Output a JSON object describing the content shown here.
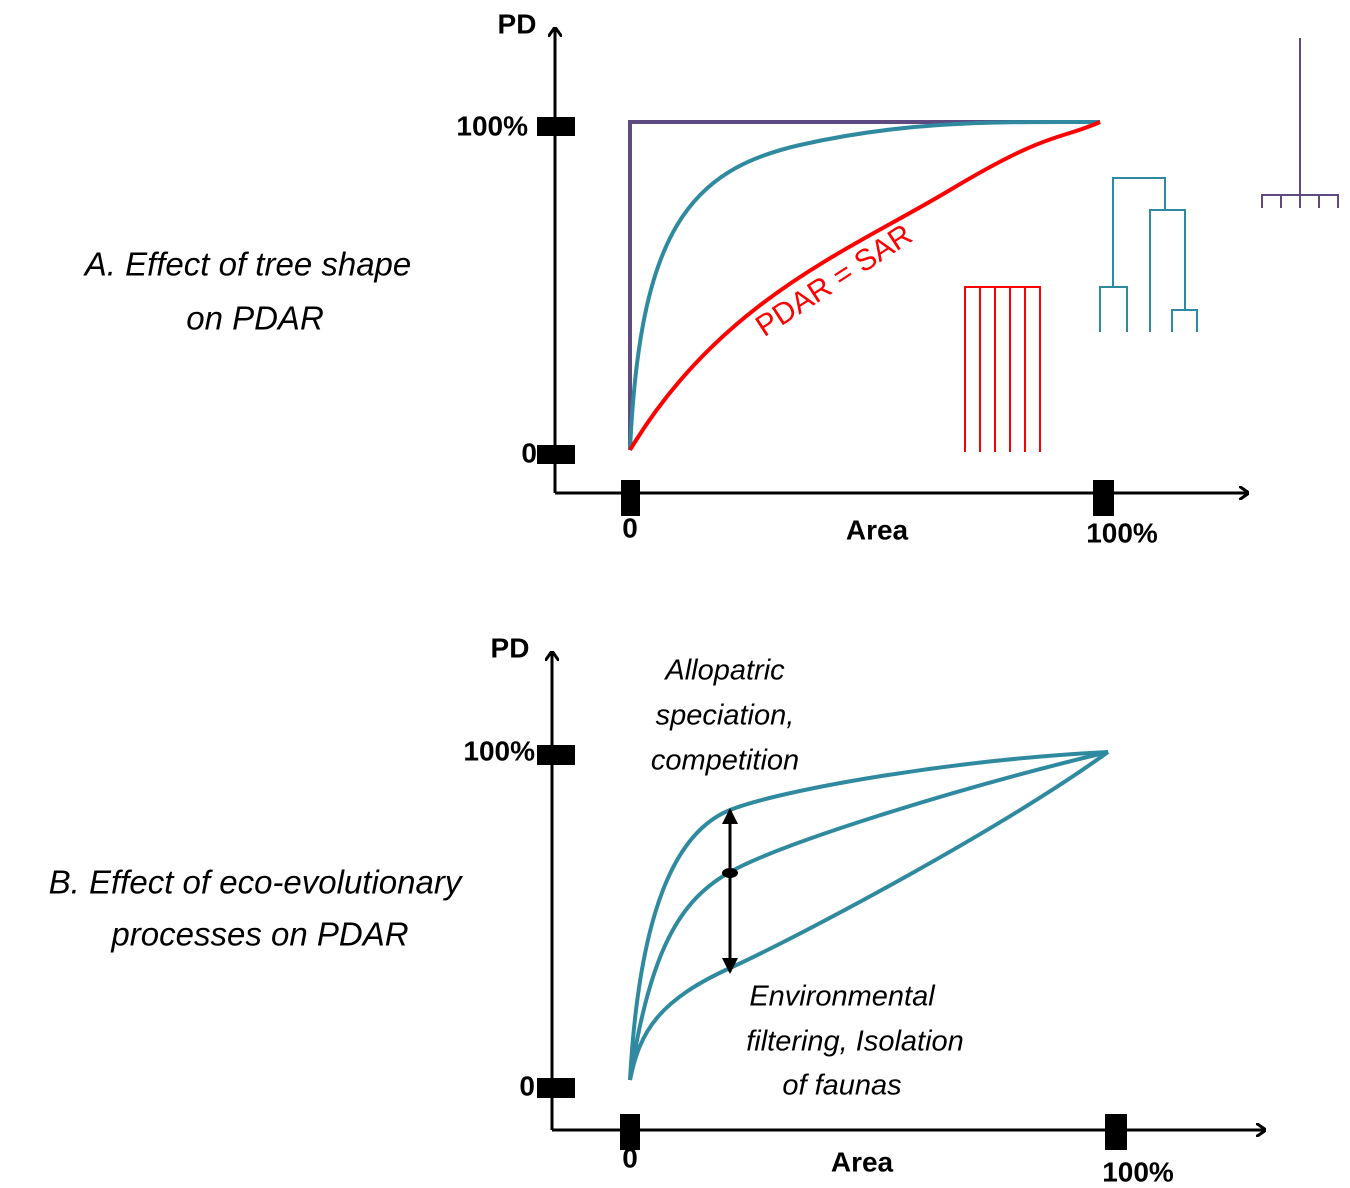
{
  "panel_a": {
    "title_lines": [
      "A. Effect of tree shape",
      "on PDAR"
    ],
    "y_axis_label": "PD",
    "y_ticks": [
      "0",
      "100%"
    ],
    "x_ticks": [
      "0",
      "100%"
    ],
    "x_axis_label": "Area",
    "curve_label": "PDAR = SAR"
  },
  "panel_b": {
    "title_lines": [
      "B. Effect of eco-evolutionary",
      "processes on PDAR"
    ],
    "y_axis_label": "PD",
    "y_ticks": [
      "0",
      "100%"
    ],
    "x_ticks": [
      "0",
      "100%"
    ],
    "x_axis_label": "Area",
    "top_annotation_lines": [
      "Allopatric",
      "speciation,",
      "competition"
    ],
    "bottom_annotation_lines": [
      "Environmental",
      "filtering, Isolation",
      "of faunas"
    ]
  }
}
